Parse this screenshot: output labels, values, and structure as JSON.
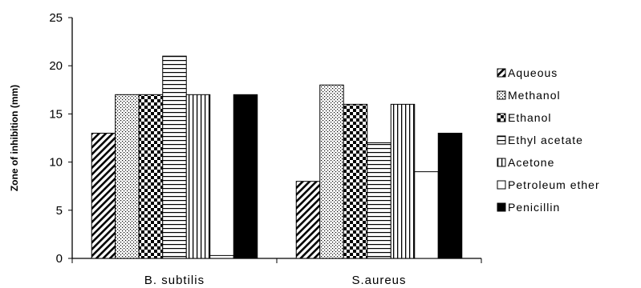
{
  "chart_data": {
    "type": "bar",
    "title": "",
    "xlabel": "",
    "ylabel": "Zone of inhibition (mm)",
    "ylim": [
      0,
      25
    ],
    "yticks": [
      0,
      5,
      10,
      15,
      20,
      25
    ],
    "grid": false,
    "legend_position": "right",
    "categories": [
      "B. subtilis",
      "S.aureus"
    ],
    "series": [
      {
        "name": "Aqueous",
        "values": [
          13,
          8
        ],
        "pattern": "diagonal-hatch"
      },
      {
        "name": "Methanol",
        "values": [
          17,
          18
        ],
        "pattern": "dots"
      },
      {
        "name": "Ethanol",
        "values": [
          17,
          16
        ],
        "pattern": "checker"
      },
      {
        "name": "Ethyl acetate",
        "values": [
          21,
          12
        ],
        "pattern": "horizontal-lines"
      },
      {
        "name": "Acetone",
        "values": [
          17,
          16
        ],
        "pattern": "vertical-lines"
      },
      {
        "name": "Petroleum ether",
        "values": [
          0.3,
          9
        ],
        "pattern": "white"
      },
      {
        "name": "Penicillin",
        "values": [
          17,
          13
        ],
        "pattern": "solid-black"
      }
    ]
  }
}
